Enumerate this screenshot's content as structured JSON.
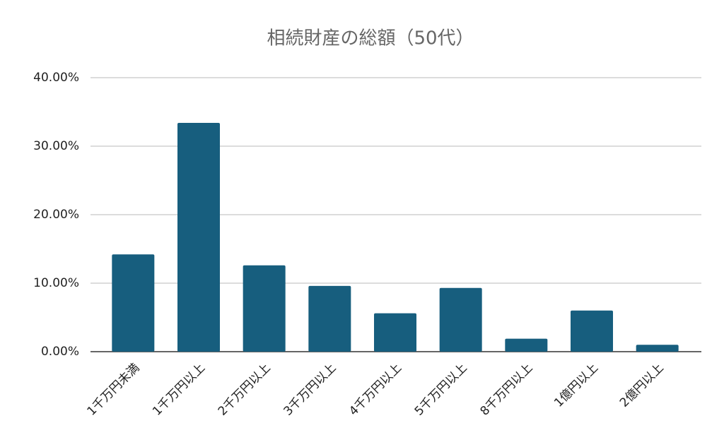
{
  "chart_data": {
    "type": "bar",
    "title": "相続財産の総額（50代）",
    "categories": [
      "1千万円未満",
      "1千万円以上",
      "2千万円以上",
      "3千万円以上",
      "4千万円以上",
      "5千万円以上",
      "8千万円以上",
      "1億円以上",
      "2億円以上"
    ],
    "values": [
      14.2,
      33.4,
      12.6,
      9.6,
      5.6,
      9.3,
      1.9,
      6.0,
      1.0
    ],
    "color": "#175e7e",
    "ylim": [
      0,
      40
    ],
    "yticks": [
      {
        "value": 0,
        "label": "0.00%"
      },
      {
        "value": 10,
        "label": "10.00%"
      },
      {
        "value": 20,
        "label": "20.00%"
      },
      {
        "value": 30,
        "label": "30.00%"
      },
      {
        "value": 40,
        "label": "40.00%"
      }
    ],
    "grid": true
  }
}
